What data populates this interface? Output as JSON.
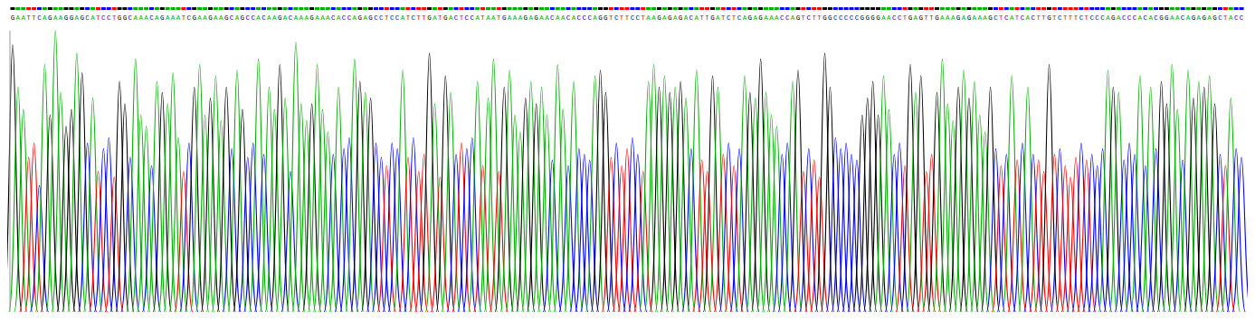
{
  "chart_data": {
    "type": "bar",
    "categories": [
      "G",
      "A",
      "A",
      "T",
      "T",
      "C",
      "A",
      "G",
      "A",
      "A",
      "G",
      "G",
      "A",
      "G",
      "C",
      "A",
      "T",
      "C",
      "C",
      "T",
      "G",
      "G",
      "C",
      "A",
      "A",
      "A",
      "C",
      "A",
      "G",
      "A",
      "A",
      "A",
      "T",
      "C",
      "G",
      "A",
      "A",
      "G",
      "A",
      "A",
      "G",
      "C",
      "A",
      "G",
      "C",
      "C",
      "A",
      "C",
      "A",
      "A",
      "G",
      "A",
      "C",
      "A",
      "A",
      "A",
      "G",
      "A",
      "A",
      "A",
      "C",
      "A",
      "C",
      "C",
      "A",
      "G",
      "A",
      "G",
      "C",
      "C",
      "T",
      "C",
      "C",
      "A",
      "T",
      "C",
      "T",
      "T",
      "G",
      "A",
      "T",
      "G",
      "A",
      "C",
      "T",
      "C",
      "C",
      "A",
      "T",
      "A",
      "A",
      "T",
      "G",
      "A",
      "A",
      "A",
      "G",
      "A",
      "G",
      "A",
      "A",
      "C",
      "A",
      "A",
      "C",
      "A",
      "C",
      "C",
      "C",
      "A",
      "G",
      "G",
      "T",
      "C",
      "T",
      "T",
      "C",
      "C",
      "T",
      "A",
      "A",
      "G",
      "A",
      "G",
      "A",
      "G",
      "A",
      "C",
      "A",
      "T",
      "T",
      "G",
      "A",
      "T",
      "C",
      "T",
      "C",
      "A",
      "G",
      "A",
      "G",
      "A",
      "A",
      "A",
      "C",
      "C",
      "A",
      "G",
      "T",
      "C",
      "T",
      "T",
      "G",
      "G",
      "C",
      "C",
      "C",
      "C",
      "C",
      "G",
      "G",
      "G",
      "G",
      "A",
      "A",
      "C",
      "C",
      "T",
      "G",
      "A",
      "G",
      "T",
      "T",
      "G",
      "A",
      "A",
      "A",
      "G",
      "A",
      "G",
      "A",
      "A",
      "A",
      "G",
      "C",
      "T",
      "C",
      "A",
      "T",
      "C",
      "A",
      "C",
      "T",
      "T",
      "G",
      "T",
      "C",
      "T",
      "T",
      "T",
      "C",
      "T",
      "C",
      "C",
      "C",
      "A",
      "G",
      "A",
      "C",
      "C",
      "C",
      "A",
      "C",
      "A",
      "C",
      "G",
      "G",
      "A",
      "A",
      "C",
      "A",
      "G",
      "A",
      "G",
      "A",
      "G",
      "C",
      "T",
      "A",
      "C",
      "C"
    ],
    "values": [
      95,
      80,
      72,
      55,
      60,
      45,
      88,
      70,
      100,
      78,
      66,
      72,
      92,
      85,
      60,
      76,
      50,
      58,
      62,
      48,
      82,
      74,
      55,
      90,
      70,
      66,
      52,
      82,
      78,
      74,
      85,
      62,
      50,
      60,
      80,
      88,
      70,
      76,
      84,
      68,
      80,
      58,
      86,
      72,
      55,
      60,
      90,
      56,
      80,
      72,
      88,
      76,
      50,
      96,
      74,
      68,
      74,
      88,
      72,
      64,
      56,
      80,
      58,
      62,
      90,
      82,
      78,
      76,
      60,
      55,
      52,
      60,
      58,
      86,
      55,
      62,
      50,
      56,
      92,
      74,
      48,
      84,
      78,
      56,
      60,
      58,
      62,
      82,
      52,
      76,
      90,
      50,
      80,
      86,
      70,
      64,
      76,
      82,
      74,
      80,
      70,
      54,
      88,
      72,
      52,
      82,
      58,
      56,
      54,
      84,
      86,
      78,
      55,
      60,
      52,
      58,
      62,
      56,
      50,
      82,
      88,
      80,
      84,
      78,
      80,
      82,
      76,
      58,
      86,
      54,
      50,
      84,
      80,
      56,
      60,
      52,
      58,
      84,
      78,
      76,
      90,
      78,
      70,
      66,
      56,
      60,
      82,
      86,
      50,
      58,
      54,
      48,
      92,
      80,
      62,
      58,
      60,
      56,
      54,
      70,
      76,
      82,
      70,
      84,
      72,
      56,
      60,
      52,
      88,
      78,
      84,
      50,
      56,
      78,
      90,
      74,
      68,
      80,
      86,
      76,
      82,
      70,
      64,
      80,
      58,
      52,
      56,
      84,
      54,
      60,
      80,
      56,
      54,
      50,
      88,
      56,
      58,
      52,
      48,
      55,
      60,
      54,
      56,
      52,
      58,
      86,
      80,
      78,
      54,
      60,
      56,
      84,
      52,
      80,
      58,
      82,
      74,
      88,
      72,
      54,
      86,
      76,
      82,
      80,
      84,
      74,
      56,
      52,
      76,
      58,
      55
    ],
    "colors": [
      "#000000",
      "#00b000",
      "#00b000",
      "#ff0000",
      "#ff0000",
      "#0000ff",
      "#00b000",
      "#000000",
      "#00b000",
      "#00b000",
      "#000000",
      "#000000",
      "#00b000",
      "#000000",
      "#0000ff",
      "#00b000",
      "#ff0000",
      "#0000ff",
      "#0000ff",
      "#ff0000",
      "#000000",
      "#000000",
      "#0000ff",
      "#00b000",
      "#00b000",
      "#00b000",
      "#0000ff",
      "#00b000",
      "#000000",
      "#00b000",
      "#00b000",
      "#00b000",
      "#ff0000",
      "#0000ff",
      "#000000",
      "#00b000",
      "#00b000",
      "#000000",
      "#00b000",
      "#00b000",
      "#000000",
      "#0000ff",
      "#00b000",
      "#000000",
      "#0000ff",
      "#0000ff",
      "#00b000",
      "#0000ff",
      "#00b000",
      "#00b000",
      "#000000",
      "#00b000",
      "#0000ff",
      "#00b000",
      "#00b000",
      "#00b000",
      "#000000",
      "#00b000",
      "#00b000",
      "#00b000",
      "#0000ff",
      "#00b000",
      "#0000ff",
      "#0000ff",
      "#00b000",
      "#000000",
      "#00b000",
      "#000000",
      "#0000ff",
      "#0000ff",
      "#ff0000",
      "#0000ff",
      "#0000ff",
      "#00b000",
      "#ff0000",
      "#0000ff",
      "#ff0000",
      "#ff0000",
      "#000000",
      "#00b000",
      "#ff0000",
      "#000000",
      "#00b000",
      "#0000ff",
      "#ff0000",
      "#0000ff",
      "#0000ff",
      "#00b000",
      "#ff0000",
      "#00b000",
      "#00b000",
      "#ff0000",
      "#000000",
      "#00b000",
      "#00b000",
      "#00b000",
      "#000000",
      "#00b000",
      "#000000",
      "#00b000",
      "#00b000",
      "#0000ff",
      "#00b000",
      "#00b000",
      "#0000ff",
      "#00b000",
      "#0000ff",
      "#0000ff",
      "#0000ff",
      "#00b000",
      "#000000",
      "#000000",
      "#ff0000",
      "#0000ff",
      "#ff0000",
      "#ff0000",
      "#0000ff",
      "#0000ff",
      "#ff0000",
      "#00b000",
      "#00b000",
      "#000000",
      "#00b000",
      "#000000",
      "#00b000",
      "#000000",
      "#00b000",
      "#0000ff",
      "#00b000",
      "#ff0000",
      "#ff0000",
      "#000000",
      "#00b000",
      "#ff0000",
      "#0000ff",
      "#ff0000",
      "#0000ff",
      "#00b000",
      "#000000",
      "#00b000",
      "#000000",
      "#00b000",
      "#00b000",
      "#00b000",
      "#0000ff",
      "#0000ff",
      "#00b000",
      "#000000",
      "#ff0000",
      "#0000ff",
      "#ff0000",
      "#ff0000",
      "#000000",
      "#000000",
      "#0000ff",
      "#0000ff",
      "#0000ff",
      "#0000ff",
      "#0000ff",
      "#000000",
      "#000000",
      "#000000",
      "#000000",
      "#00b000",
      "#00b000",
      "#0000ff",
      "#0000ff",
      "#ff0000",
      "#000000",
      "#00b000",
      "#000000",
      "#ff0000",
      "#ff0000",
      "#000000",
      "#00b000",
      "#00b000",
      "#00b000",
      "#000000",
      "#00b000",
      "#000000",
      "#00b000",
      "#00b000",
      "#00b000",
      "#000000",
      "#0000ff",
      "#ff0000",
      "#0000ff",
      "#00b000",
      "#ff0000",
      "#0000ff",
      "#00b000",
      "#0000ff",
      "#ff0000",
      "#ff0000",
      "#000000",
      "#ff0000",
      "#0000ff",
      "#ff0000",
      "#ff0000",
      "#ff0000",
      "#0000ff",
      "#ff0000",
      "#0000ff",
      "#0000ff",
      "#0000ff",
      "#00b000",
      "#000000",
      "#00b000",
      "#0000ff",
      "#0000ff",
      "#0000ff",
      "#00b000",
      "#0000ff",
      "#00b000",
      "#0000ff",
      "#000000",
      "#000000",
      "#00b000",
      "#00b000",
      "#0000ff",
      "#00b000",
      "#000000",
      "#00b000",
      "#000000",
      "#00b000",
      "#000000",
      "#0000ff",
      "#ff0000",
      "#00b000",
      "#0000ff",
      "#0000ff"
    ],
    "ylim": [
      0,
      100
    ],
    "tick_labels": "x"
  }
}
